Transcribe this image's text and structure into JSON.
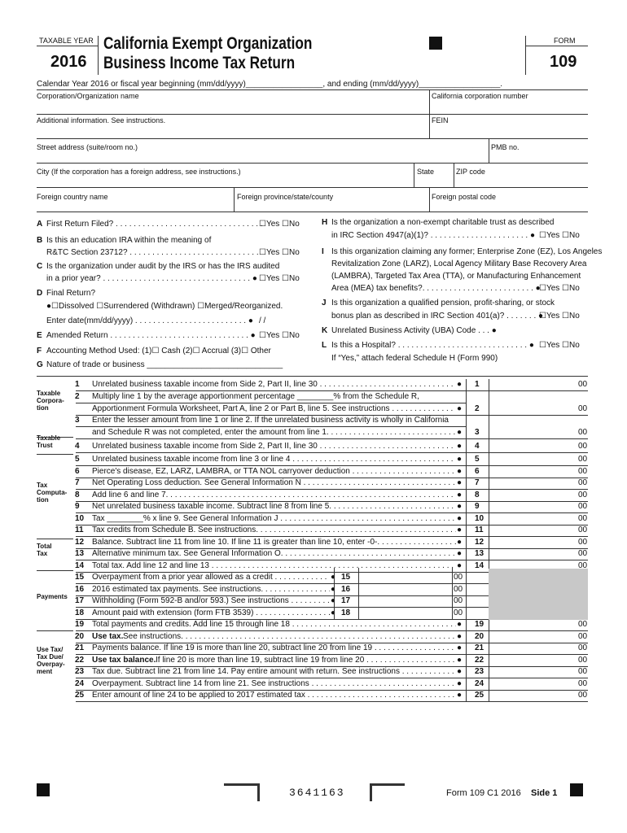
{
  "header": {
    "tax_year_label": "TAXABLE YEAR",
    "year": "2016",
    "title_line1": "California Exempt Organization",
    "title_line2": "Business Income Tax Return",
    "form_label": "FORM",
    "form_number": "109"
  },
  "calendar_line": "Calendar Year 2016 or fiscal year beginning (mm/dd/yyyy)_________________, and ending (mm/dd/yyyy)__________________.",
  "fields": [
    "Corporation/Organization name",
    "California corporation number",
    "Additional information. See instructions.",
    "FEIN",
    "Street address (suite/room no.)",
    "PMB no.",
    "City (If the corporation has a foreign address, see instructions.)",
    "State",
    "ZIP code",
    "Foreign country name",
    "Foreign province/state/county",
    "Foreign postal code"
  ],
  "questions_left": [
    {
      "letter": "A",
      "text": "First Return Filed? . . . . . . . . . . . . . . . . . . . . . . . . . . . . . . . . .",
      "answer": "☐Yes  ☐No"
    },
    {
      "letter": "B",
      "text": "Is this an education IRA within the meaning of"
    },
    {
      "text": "R&TC Section 23712? . . . . . . . . . . . . . . . . . . . . . . . . . . . . .",
      "answer": "☐Yes  ☐No"
    },
    {
      "letter": "C",
      "text": "Is the organization under audit by the IRS or has the IRS audited"
    },
    {
      "text": "in a prior year? . . . . . . . . . . . . . . . . . . . . . . . . . . . . . . . . . ●",
      "answer": "☐Yes  ☐No"
    },
    {
      "letter": "D",
      "text": "Final Return?"
    },
    {
      "text": "●☐Dissolved      ☐Surrendered (Withdrawn)      ☐Merged/Reorganized."
    },
    {
      "text": "Enter date(mm/dd/yyyy) . . . . . . . . . . . . . . . . . . . . . . . . . ●",
      "answer": "  /    /"
    },
    {
      "letter": "E",
      "text": "Amended Return . . . . . . . . . . . . . . . . . . . . . . . . . . . . . . . ●",
      "answer": "☐Yes  ☐No"
    },
    {
      "letter": "F",
      "text": "Accounting Method Used:  (1)☐ Cash   (2)☐ Accrual   (3)☐ Other"
    },
    {
      "letter": "G",
      "text": "Nature of trade or business ______________________________"
    }
  ],
  "questions_right": [
    {
      "letter": "H",
      "text": "Is the organization a non-exempt charitable trust as described"
    },
    {
      "text": "in IRC Section 4947(a)(1)? . . . . . . . . . . . . . . . . . . . . . . ●",
      "answer": "☐Yes  ☐No"
    },
    {
      "letter": "I",
      "text": "Is this organization claiming any former; Enterprise Zone (EZ), Los Angeles"
    },
    {
      "text": "Revitalization Zone (LARZ), Local Agency Military Base Recovery Area"
    },
    {
      "text": "(LAMBRA), Targeted Tax Area (TTA), or Manufacturing Enhancement"
    },
    {
      "text": "Area (MEA) tax benefits?. . . . . . . . . . . . . . . . . . . . . . . . . ●",
      "answer": "☐Yes  ☐No"
    },
    {
      "letter": "J",
      "text": "Is this organization a qualified pension, profit-sharing, or stock"
    },
    {
      "text": "bonus plan as described in IRC Section 401(a)? . . . . . . . ●",
      "answer": "☐Yes  ☐No"
    },
    {
      "letter": "K",
      "text": "Unrelated Business Activity (UBA) Code . . . ●"
    },
    {
      "letter": "L",
      "text": "Is this a Hospital? . . . . . . . . . . . . . . . . . . . . . . . . . . . . . ●",
      "answer": "☐Yes  ☐No"
    },
    {
      "text": "If “Yes,” attach federal Schedule H (Form 990)"
    }
  ],
  "sections": [
    {
      "lines": [
        "Taxable",
        "Corpora-",
        "tion"
      ]
    },
    {
      "lines": [
        "Taxable",
        "Trust"
      ]
    },
    {
      "lines": [
        "Tax",
        "Computa-",
        "tion"
      ]
    },
    {
      "lines": [
        "Total",
        "Tax"
      ]
    },
    {
      "lines": [
        "Payments"
      ]
    },
    {
      "lines": [
        "Use Tax/",
        "Tax Due/",
        "Overpay-",
        "ment"
      ]
    }
  ],
  "lines": [
    {
      "num": "1",
      "text": [
        "Unrelated business taxable income from Side 2, Part II, line 30 . . . . . . . . . . . . . . . . . . . . . . . . . . . . . . . . . . . . . . . . ."
      ],
      "bullet": "●",
      "box": "1",
      "cents": "00"
    },
    {
      "num": "2",
      "text": [
        "Multiply line 1 by the average apportionment percentage ________% from the Schedule R,",
        "Apportionment Formula Worksheet, Part A, line 2 or Part B, line 5. See instructions . . . . . . . . . . . . . . . . . . . . . . ."
      ],
      "bullet": "●",
      "box": "2",
      "cents": "00"
    },
    {
      "num": "3",
      "text": [
        "Enter the lesser amount from line 1 or line 2. If the unrelated business activity is wholly in California",
        "and Schedule R was not completed, enter the amount from line 1. . . . . . . . . . . . . . . . . . . . . . . . . . . . . . . . . ."
      ],
      "bullet": "●",
      "box": "3",
      "cents": "00"
    },
    {
      "num": "4",
      "text": [
        "Unrelated business taxable income from Side 2, Part II, line 30 . . . . . . . . . . . . . . . . . . . . . . . . . . . . . . . . . . . . . . . . ."
      ],
      "bullet": "●",
      "box": "4",
      "cents": "00"
    },
    {
      "num": "5",
      "text": [
        "Unrelated business taxable income from line 3 or line 4 . . . . . . . . . . . . . . . . . . . . . . . . . . . . . . . . . . . . . . . . . . . . . . ."
      ],
      "bullet": "●",
      "box": "5",
      "cents": "00"
    },
    {
      "num": "6",
      "text": [
        "Pierce's disease, EZ, LARZ, LAMBRA, or TTA NOL carryover deduction . . . . . . . . . . . . . . . . . . . . . . . . . . . . . . . . ."
      ],
      "bullet": "●",
      "box": "6",
      "cents": "00"
    },
    {
      "num": "7",
      "text": [
        "Net Operating Loss deduction. See General Information N . . . . . . . . . . . . . . . . . . . . . . . . . . . . . . . . . . . . . . . . . . . . ."
      ],
      "bullet": "●",
      "box": "7",
      "cents": "00"
    },
    {
      "num": "8",
      "text": [
        "Add line 6 and line 7. . . . . . . . . . . . . . . . . . . . . . . . . . . . . . . . . . . . . . . . . . . . . . . . . . . . . . . . . . . . . . . . . . . . . . . . ."
      ],
      "bullet": "●",
      "box": "8",
      "cents": "00"
    },
    {
      "num": "9",
      "text": [
        "Net unrelated business taxable income. Subtract line 8 from line 5. . . . . . . . . . . . . . . . . . . . . . . . . . . . . . . . . . . . . . ."
      ],
      "bullet": "●",
      "box": "9",
      "cents": "00"
    },
    {
      "num": "10",
      "text": [
        "Tax ________% x line 9. See General Information J . . . . . . . . . . . . . . . . . . . . . . . . . . . . . . . . . . . . . . . . . . . . . . . . ."
      ],
      "bullet": "●",
      "box": "10",
      "cents": "00"
    },
    {
      "num": "11",
      "text": [
        "Tax credits from Schedule B. See instructions. . . . . . . . . . . . . . . . . . . . . . . . . . . . . . . . . . . . . . . . . . . . . . . . . . . . . . . ."
      ],
      "bullet": "●",
      "box": "11",
      "cents": "00"
    },
    {
      "num": "12",
      "text": [
        "Balance. Subtract line 11 from line 10. If line 11 is greater than line 10, enter -0-. . . . . . . . . . . . . . . . . . . . . . . . ."
      ],
      "bullet": "●",
      "box": "12",
      "cents": "00"
    },
    {
      "num": "13",
      "text": [
        "Alternative minimum tax. See General Information O. . . . . . . . . . . . . . . . . . . . . . . . . . . . . . . . . . . . . . . . . . . . . . . ."
      ],
      "bullet": "●",
      "box": "13",
      "cents": "00"
    },
    {
      "num": "14",
      "text": [
        "Total tax. Add line 12 and line 13 . . . . . . . . . . . . . . . . . . . . . . . . . . . . . . . . . . . . . . . . . . . . . . . . . . . . . . . . . . . . . . ."
      ],
      "bullet": "●",
      "box": "14",
      "cents": "00"
    },
    {
      "num": "15",
      "text": [
        "Overpayment from a prior year allowed as a credit . . . . . . . . . . . . . . . . . . . . . ."
      ],
      "bullet": "●",
      "box": "15",
      "cents": "00"
    },
    {
      "num": "16",
      "text": [
        "2016 estimated tax payments. See instructions. . . . . . . . . . . . . . . . . . . . . . ."
      ],
      "bullet": "●",
      "box": "16",
      "cents": "00"
    },
    {
      "num": "17",
      "text": [
        "Withholding (Form 592-B and/or 593.) See instructions . . . . . . . . . . . . . . . . ."
      ],
      "bullet": "●",
      "box": "17",
      "cents": "00"
    },
    {
      "num": "18",
      "text": [
        "Amount paid with extension (form FTB 3539) . . . . . . . . . . . . . . . . . . . . . . . . ."
      ],
      "bullet": "●",
      "box": "18",
      "cents": "00"
    },
    {
      "num": "19",
      "text": [
        "Total payments and credits. Add line 15 through line 18 . . . . . . . . . . . . . . . . . . . . . . . . . . . . . . . . . . . . . . . . . . . . . . . ."
      ],
      "bullet": "●",
      "box": "19",
      "cents": "00"
    },
    {
      "num": "20",
      "lead": "Use tax.",
      "text": [
        " See instructions. . . . . . . . . . . . . . . . . . . . . . . . . . . . . . . . . . . . . . . . . . . . . . . . . . . . . . . . . . . . . . . . . . . . . . . . . . ."
      ],
      "bullet": "●",
      "box": "20",
      "cents": "00"
    },
    {
      "num": "21",
      "text": [
        "Payments balance. If line 19 is more than line 20, subtract line 20 from line 19 . . . . . . . . . . . . . . . . . . . . . . . . . . ."
      ],
      "bullet": "●",
      "box": "21",
      "cents": "00"
    },
    {
      "num": "22",
      "lead": "Use tax balance.",
      "text": [
        " If line 20 is more than line 19, subtract line 19 from line 20 . . . . . . . . . . . . . . . . . . . . . . . . . . ."
      ],
      "bullet": "●",
      "box": "22",
      "cents": "00"
    },
    {
      "num": "23",
      "text": [
        "Tax due. Subtract line 21 from line 14. Pay entire amount with return. See instructions . . . . . . . . . . . . . . . . . . ."
      ],
      "bullet": "●",
      "box": "23",
      "cents": "00"
    },
    {
      "num": "24",
      "text": [
        "Overpayment. Subtract line 14 from line 21. See instructions . . . . . . . . . . . . . . . . . . . . . . . . . . . . . . . . . . . . . . . . . . ."
      ],
      "bullet": "●",
      "box": "24",
      "cents": "00"
    },
    {
      "num": "25",
      "text": [
        "Enter amount of line 24 to be applied to 2017 estimated tax . . . . . . . . . . . . . . . . . . . . . . . . . . . . . . . . . . . . . . . . . . . . ."
      ],
      "bullet": "●",
      "box": "25",
      "cents": "00"
    }
  ],
  "footer": {
    "barcode": "3641163",
    "form": "Form 109 C1  2016",
    "side": "Side 1"
  }
}
